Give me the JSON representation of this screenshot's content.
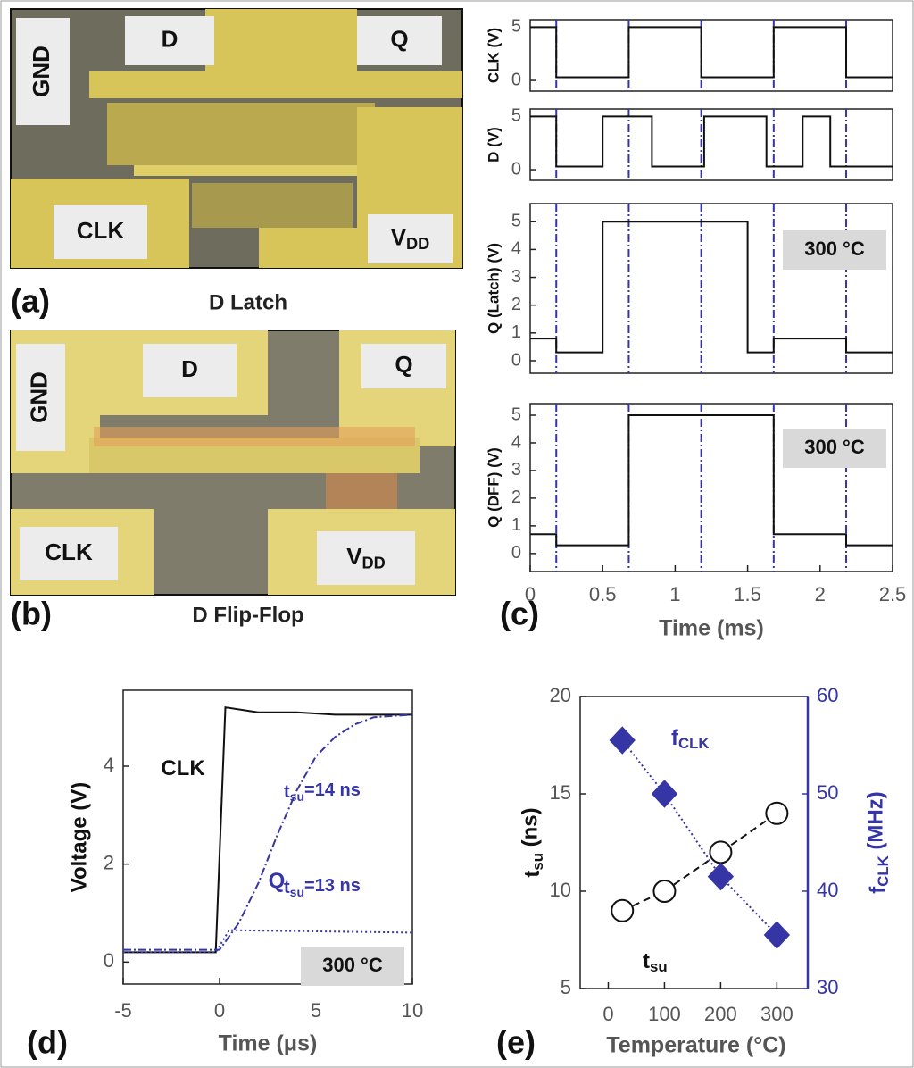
{
  "panels": [
    {
      "label": "(a)",
      "title": "D Latch",
      "pads": [
        {
          "text": "GND"
        },
        {
          "text": "D"
        },
        {
          "text": "Q"
        },
        {
          "text": "CLK"
        },
        {
          "text": "V",
          "sub": "DD"
        }
      ]
    },
    {
      "label": "(b)",
      "title": "D Flip-Flop",
      "pads": [
        {
          "text": "GND"
        },
        {
          "text": "D"
        },
        {
          "text": "Q"
        },
        {
          "text": "CLK"
        },
        {
          "text": "V",
          "sub": "DD"
        }
      ]
    }
  ],
  "chart_data": [
    {
      "type": "line",
      "ylabel": "CLK (V)",
      "xlim": [
        0,
        2.5
      ],
      "ylim": [
        -1,
        5.7
      ],
      "yticks": [
        0,
        5
      ],
      "vlines": [
        0.18,
        0.68,
        1.18,
        1.68,
        2.18
      ],
      "vline_color": "#3535a5",
      "series": [
        {
          "color": "#111111",
          "dash": "solid",
          "x": [
            0,
            0.18,
            0.18,
            0.68,
            0.68,
            1.18,
            1.18,
            1.68,
            1.68,
            2.18,
            2.18,
            2.5
          ],
          "values": [
            5,
            5,
            0.3,
            0.3,
            5,
            5,
            0.3,
            0.3,
            5,
            5,
            0.3,
            0.3
          ]
        }
      ]
    },
    {
      "type": "line",
      "ylabel": "D (V)",
      "xlim": [
        0,
        2.5
      ],
      "ylim": [
        -1,
        5.7
      ],
      "yticks": [
        0,
        5
      ],
      "vlines": [
        0.18,
        0.68,
        1.18,
        1.68,
        2.18
      ],
      "vline_color": "#3535a5",
      "series": [
        {
          "color": "#111111",
          "dash": "solid",
          "x": [
            0,
            0.18,
            0.18,
            0.5,
            0.5,
            0.84,
            0.84,
            1.2,
            1.2,
            1.63,
            1.63,
            1.88,
            1.88,
            2.07,
            2.07,
            2.5
          ],
          "values": [
            5,
            5,
            0.3,
            0.3,
            5,
            5,
            0.3,
            0.3,
            5,
            5,
            0.3,
            0.3,
            5,
            5,
            0.3,
            0.3
          ]
        }
      ]
    },
    {
      "type": "line",
      "ylabel": "Q (Latch) (V)",
      "xlim": [
        0,
        2.5
      ],
      "ylim": [
        -0.45,
        5.65
      ],
      "yticks": [
        0,
        1,
        2,
        3,
        4,
        5
      ],
      "vlines": [
        0.18,
        0.68,
        1.18,
        1.68,
        2.18
      ],
      "vline_color": "#3535a5",
      "annotations": [
        {
          "text": "300 °C",
          "boxed": true
        }
      ],
      "series": [
        {
          "color": "#111111",
          "dash": "solid",
          "x": [
            0,
            0.18,
            0.18,
            0.5,
            0.5,
            1.5,
            1.5,
            1.68,
            1.68,
            2.18,
            2.18,
            2.5
          ],
          "values": [
            0.8,
            0.8,
            0.3,
            0.3,
            5,
            5,
            0.3,
            0.3,
            0.8,
            0.8,
            0.3,
            0.3
          ]
        }
      ]
    },
    {
      "type": "line",
      "ylabel": "Q (DFF) (V)",
      "xlabel": "Time (ms)",
      "panel_label": "(c)",
      "xlim": [
        0,
        2.5
      ],
      "ylim": [
        -0.65,
        5.42
      ],
      "yticks": [
        0,
        1,
        2,
        3,
        4,
        5
      ],
      "xticks": [
        0,
        0.5,
        1,
        1.5,
        2,
        2.5
      ],
      "vlines": [
        0.18,
        0.68,
        1.18,
        1.68,
        2.18
      ],
      "vline_color": "#3535a5",
      "annotations": [
        {
          "text": "300 °C",
          "boxed": true
        }
      ],
      "series": [
        {
          "color": "#111111",
          "dash": "solid",
          "x": [
            0,
            0.18,
            0.18,
            0.68,
            0.68,
            1.68,
            1.68,
            2.18,
            2.18,
            2.5
          ],
          "values": [
            0.7,
            0.7,
            0.3,
            0.3,
            5,
            5,
            0.7,
            0.7,
            0.3,
            0.3
          ]
        }
      ]
    },
    {
      "type": "line",
      "ylabel": "Voltage (V)",
      "xlabel": "Time (μs)",
      "panel_label": "(d)",
      "xlim": [
        -5,
        10
      ],
      "ylim": [
        -0.45,
        5.55
      ],
      "xticks": [
        -5,
        0,
        5,
        10
      ],
      "yticks": [
        0,
        2,
        4
      ],
      "annotations": [
        {
          "text": "CLK"
        },
        {
          "text": "Q",
          "color": "#3535a5"
        },
        {
          "text": "t",
          "sub": "su",
          "rest": "=14 ns",
          "color": "#3535a5"
        },
        {
          "text": "t",
          "sub": "su",
          "rest": "=13 ns",
          "color": "#3535a5"
        },
        {
          "text": "300 °C",
          "boxed": true
        }
      ],
      "series": [
        {
          "color": "#111111",
          "dash": "solid",
          "x": [
            -5,
            -0.2,
            0.3,
            2,
            4,
            6,
            8,
            10
          ],
          "values": [
            0.2,
            0.2,
            5.2,
            5.1,
            5.1,
            5.05,
            5.05,
            5.05
          ]
        },
        {
          "color": "#3535a5",
          "dash": "dashdot",
          "x": [
            -5,
            0,
            1,
            2,
            3,
            4,
            5,
            6,
            7,
            8,
            10
          ],
          "values": [
            0.25,
            0.25,
            0.8,
            1.6,
            2.6,
            3.5,
            4.2,
            4.6,
            4.85,
            5.0,
            5.05
          ]
        },
        {
          "color": "#3535a5",
          "dash": "dotted",
          "x": [
            -5,
            -0.2,
            0.5,
            10
          ],
          "values": [
            0.2,
            0.2,
            0.65,
            0.6
          ]
        }
      ]
    },
    {
      "type": "scatter",
      "ylabel": {
        "text": "t",
        "sub": "su",
        "rest": " (ns)"
      },
      "y2label": {
        "text": "f",
        "sub": "CLK",
        "rest": " (MHz)"
      },
      "xlabel": "Temperature (°C)",
      "panel_label": "(e)",
      "xlim": [
        -50,
        355
      ],
      "ylim": [
        5,
        20
      ],
      "y2lim": [
        30,
        60
      ],
      "xticks": [
        0,
        100,
        200,
        300
      ],
      "yticks": [
        5,
        10,
        15,
        20
      ],
      "y2ticks": [
        30,
        40,
        50,
        60
      ],
      "y2color": "#3535a5",
      "annotations": [
        {
          "text": "f",
          "sub": "CLK",
          "color": "#3535a5"
        },
        {
          "text": "t",
          "sub": "su"
        }
      ],
      "series": [
        {
          "color": "#111111",
          "marker": "circle",
          "dash": "dashed",
          "x": [
            25,
            100,
            200,
            300
          ],
          "values": [
            9,
            10,
            12,
            14
          ]
        },
        {
          "color": "#3535a5",
          "marker": "diamond",
          "dash": "dotted",
          "axis": "y2",
          "x": [
            25,
            100,
            200,
            300
          ],
          "values": [
            55.5,
            50,
            41.5,
            35.5
          ]
        }
      ]
    }
  ]
}
